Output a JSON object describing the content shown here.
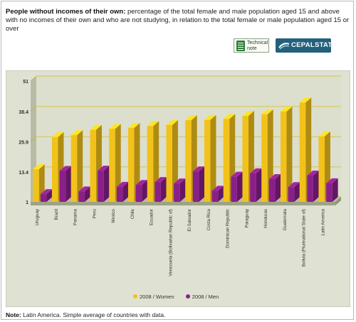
{
  "header": {
    "title_bold": "People without incomes of their own:",
    "title_rest": " percentage of the total female and male population aged 15 and above with no incomes of their own and who are not studying, in relation to the total female or male population aged 15 or over"
  },
  "buttons": {
    "technical_note": "Technical note",
    "cepalstat": "CEPALSTAT"
  },
  "note": {
    "label": "Note:",
    "text": " Latin America. Simple average of countries with data."
  },
  "chart_data": {
    "type": "bar",
    "categories": [
      "Uruguay",
      "Brazil",
      "Panama",
      "Peru",
      "Mexico",
      "Chile",
      "Ecuador",
      "Venezuela (Bolivarian Republic of)",
      "El Salvador",
      "Costa Rica",
      "Dominican Republic",
      "Paraguay",
      "Honduras",
      "Guatemala",
      "Bolivia (Plurinational State of)",
      "Latin America"
    ],
    "series": [
      {
        "name": "2008 / Women",
        "color": "#f2c21b",
        "values": [
          14.5,
          27.8,
          28.6,
          30.8,
          31.2,
          31.6,
          32.4,
          32.8,
          34.8,
          34.9,
          35.3,
          36.6,
          37.2,
          38.4,
          42.1,
          28.1
        ]
      },
      {
        "name": "2008 / Men",
        "color": "#8a1f8a",
        "values": [
          4.2,
          13.8,
          5.3,
          13.9,
          7.2,
          8.0,
          9.2,
          8.6,
          13.6,
          5.6,
          11.4,
          12.8,
          10.4,
          7.1,
          11.9,
          8.7
        ]
      }
    ],
    "y_ticks": [
      "1",
      "13.4",
      "25.9",
      "38.4",
      "51"
    ],
    "ylim": [
      1,
      51
    ],
    "grid": true,
    "legend_position": "bottom-center"
  }
}
